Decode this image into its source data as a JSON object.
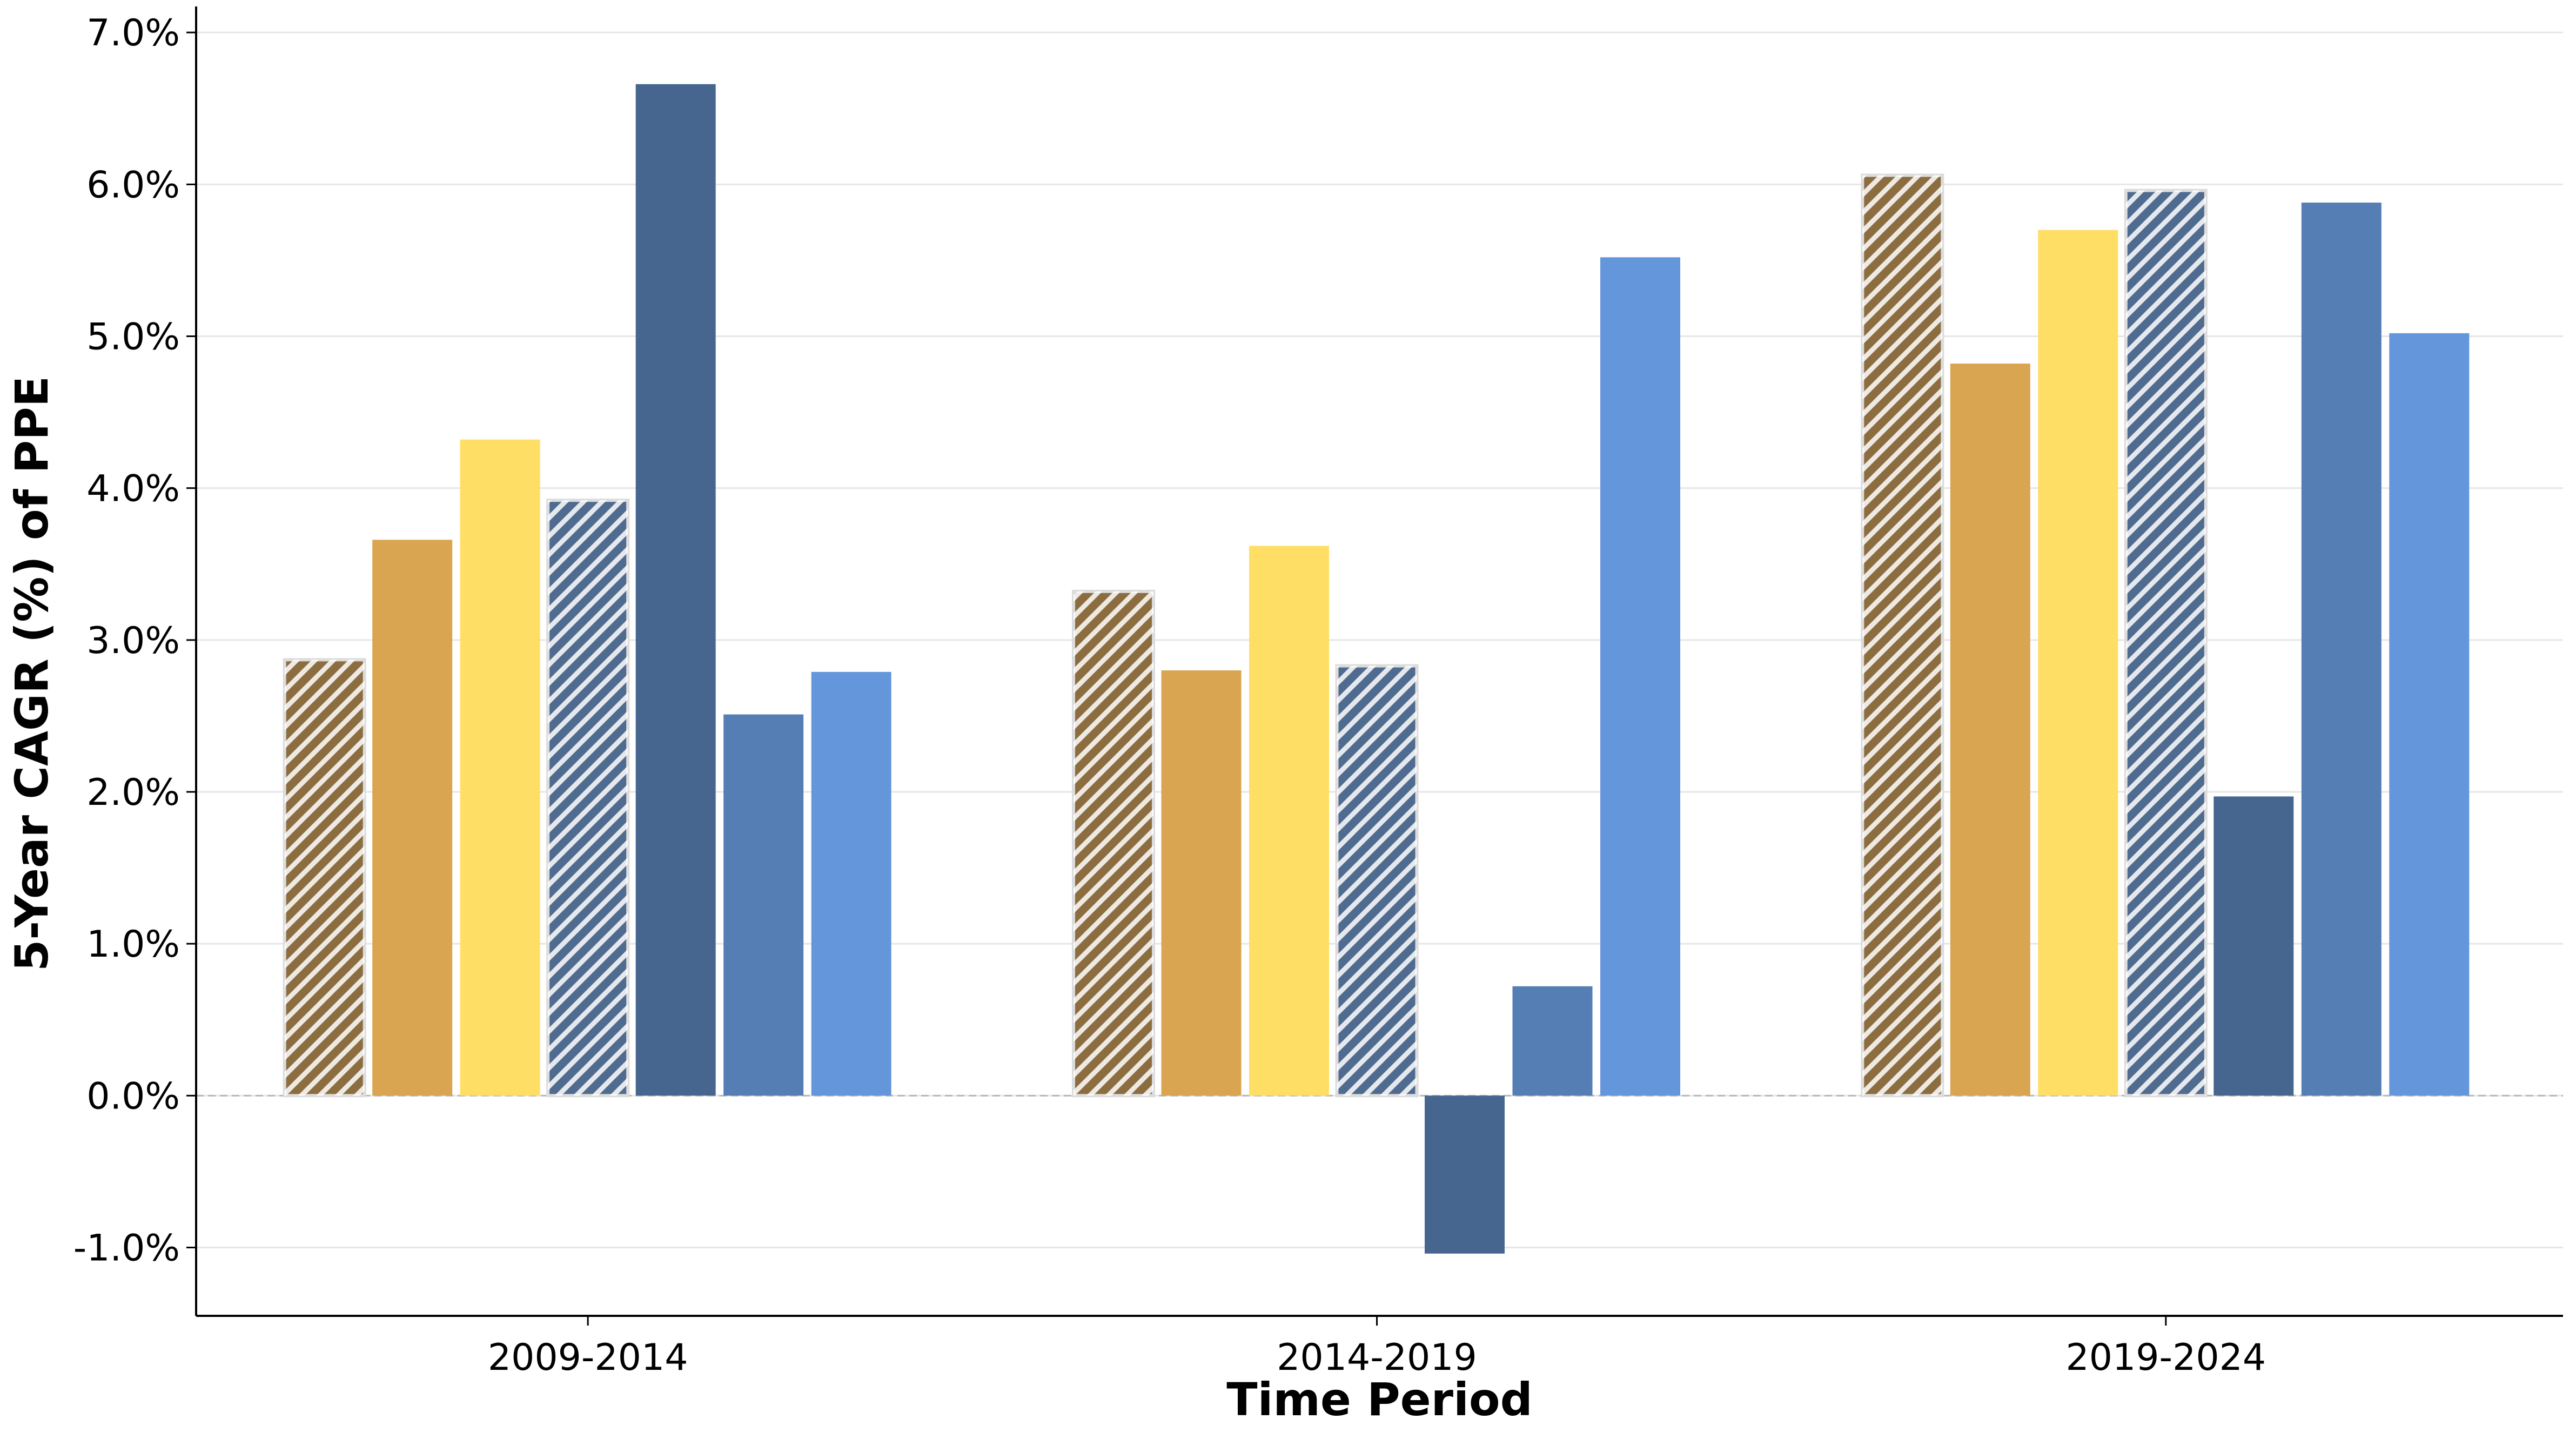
{
  "chart_data": {
    "type": "bar",
    "xlabel": "Time Period",
    "ylabel": "5-Year CAGR (%) of PPE",
    "categories": [
      "2009-2014",
      "2014-2019",
      "2019-2024"
    ],
    "ylim": [
      -1.45,
      7.15
    ],
    "yticks": [
      -1.0,
      0.0,
      1.0,
      2.0,
      3.0,
      4.0,
      5.0,
      6.0,
      7.0
    ],
    "ytick_labels": [
      "-1.0%",
      "0.0%",
      "1.0%",
      "2.0%",
      "3.0%",
      "4.0%",
      "5.0%",
      "6.0%",
      "7.0%"
    ],
    "grid": "horizontal",
    "legend": "none",
    "series": [
      {
        "color": "#8B6D3F",
        "hatch": true,
        "values": [
          2.87,
          3.32,
          6.06
        ]
      },
      {
        "color": "#DAA550",
        "hatch": false,
        "values": [
          3.66,
          2.8,
          4.82
        ]
      },
      {
        "color": "#FFDE66",
        "hatch": false,
        "values": [
          4.32,
          3.62,
          5.7
        ]
      },
      {
        "color": "#4F6B8F",
        "hatch": true,
        "values": [
          3.92,
          2.83,
          5.96
        ]
      },
      {
        "color": "#46668F",
        "hatch": false,
        "values": [
          6.66,
          -1.04,
          1.97
        ]
      },
      {
        "color": "#557EB5",
        "hatch": false,
        "values": [
          2.51,
          0.72,
          5.88
        ]
      },
      {
        "color": "#6496DB",
        "hatch": false,
        "values": [
          2.79,
          5.52,
          5.02
        ]
      }
    ]
  }
}
